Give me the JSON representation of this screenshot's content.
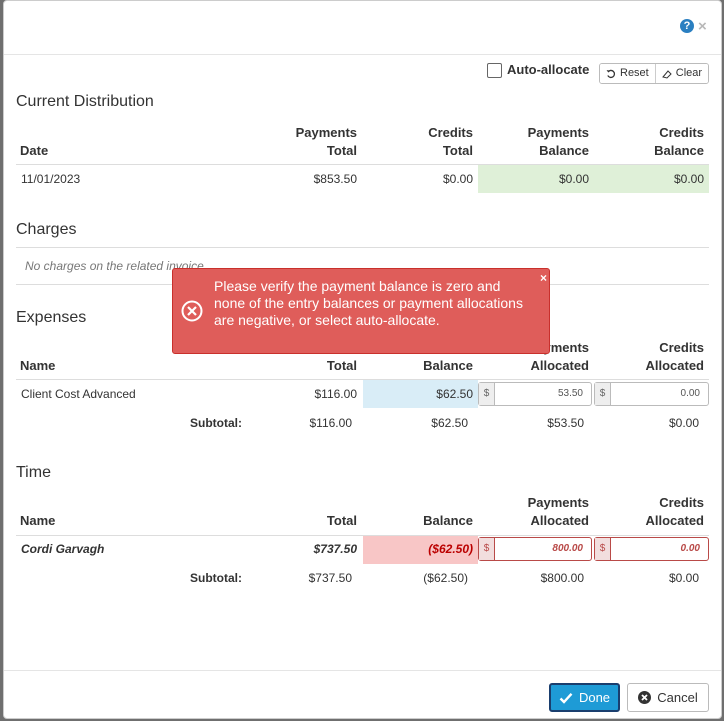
{
  "header": {
    "help_icon": "?",
    "close_icon": "×"
  },
  "toolbar": {
    "auto_allocate_label": "Auto-allocate",
    "reset_label": "Reset",
    "clear_label": "Clear"
  },
  "current_distribution": {
    "title": "Current Distribution",
    "headers": {
      "date": "Date",
      "payments_total_1": "Payments",
      "payments_total_2": "Total",
      "credits_total_1": "Credits",
      "credits_total_2": "Total",
      "payments_balance_1": "Payments",
      "payments_balance_2": "Balance",
      "credits_balance_1": "Credits",
      "credits_balance_2": "Balance"
    },
    "row": {
      "date": "11/01/2023",
      "payments_total": "$853.50",
      "credits_total": "$0.00",
      "payments_balance": "$0.00",
      "credits_balance": "$0.00"
    }
  },
  "charges": {
    "title": "Charges",
    "empty_text": "No charges on the related invoice"
  },
  "expenses": {
    "title": "Expenses",
    "headers": {
      "name": "Name",
      "total": "Total",
      "balance": "Balance",
      "payments_allocated_1": "Payments",
      "payments_allocated_2": "Allocated",
      "credits_allocated_1": "Credits",
      "credits_allocated_2": "Allocated"
    },
    "row": {
      "name": "Client Cost Advanced",
      "total": "$116.00",
      "balance": "$62.50",
      "currency": "$",
      "payments_allocated": "53.50",
      "credits_allocated": "0.00"
    },
    "subtotal": {
      "label": "Subtotal:",
      "total": "$116.00",
      "balance": "$62.50",
      "payments_allocated": "$53.50",
      "credits_allocated": "$0.00"
    }
  },
  "time": {
    "title": "Time",
    "headers": {
      "name": "Name",
      "total": "Total",
      "balance": "Balance",
      "payments_allocated_1": "Payments",
      "payments_allocated_2": "Allocated",
      "credits_allocated_1": "Credits",
      "credits_allocated_2": "Allocated"
    },
    "row": {
      "name": "Cordi Garvagh",
      "total": "$737.50",
      "balance": "($62.50)",
      "currency": "$",
      "payments_allocated": "800.00",
      "credits_allocated": "0.00"
    },
    "subtotal": {
      "label": "Subtotal:",
      "total": "$737.50",
      "balance": "($62.50)",
      "payments_allocated": "$800.00",
      "credits_allocated": "$0.00"
    }
  },
  "alert": {
    "message": "Please verify the payment balance is zero and none of the entry balances or payment allocations are negative, or select auto-allocate.",
    "close": "×"
  },
  "footer": {
    "done_label": "Done",
    "cancel_label": "Cancel"
  },
  "colors": {
    "success_fill": "#dff0d8",
    "info_fill": "#d9edf7",
    "danger_fill": "#f8c6c6",
    "alert_bg": "#df5d5a",
    "primary": "#1e9bd6"
  }
}
